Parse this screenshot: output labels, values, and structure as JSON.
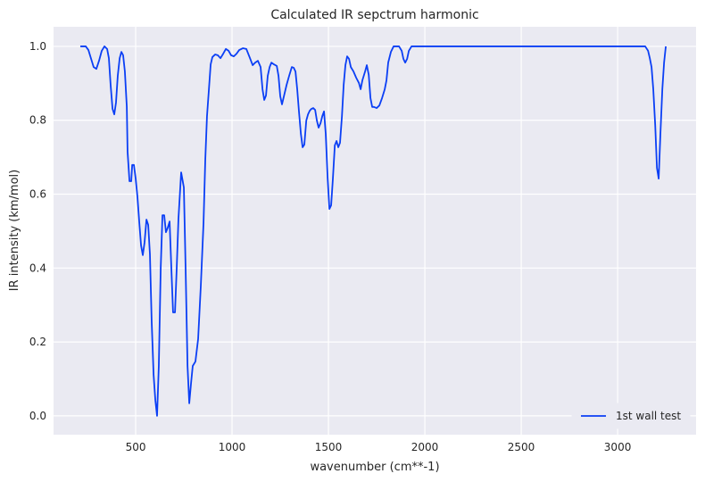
{
  "chart_data": {
    "type": "line",
    "title": "Calculated IR sepctrum harmonic",
    "x_label": "wavenumber (cm**-1)",
    "y_label": "IR intensity (km/mol)",
    "x": [
      213,
      241,
      255,
      269,
      282,
      296,
      310,
      324,
      338,
      352,
      361,
      370,
      380,
      389,
      398,
      407,
      417,
      426,
      435,
      444,
      454,
      458,
      468,
      477,
      482,
      491,
      500,
      509,
      519,
      528,
      537,
      546,
      556,
      565,
      574,
      583,
      593,
      602,
      611,
      620,
      630,
      639,
      648,
      657,
      667,
      676,
      685,
      694,
      704,
      713,
      722,
      736,
      750,
      759,
      769,
      778,
      787,
      796,
      810,
      824,
      838,
      852,
      861,
      870,
      880,
      889,
      898,
      912,
      926,
      940,
      954,
      968,
      982,
      995,
      1009,
      1023,
      1037,
      1056,
      1074,
      1093,
      1107,
      1120,
      1134,
      1148,
      1158,
      1167,
      1176,
      1185,
      1195,
      1204,
      1218,
      1232,
      1241,
      1250,
      1259,
      1269,
      1283,
      1296,
      1310,
      1320,
      1329,
      1338,
      1347,
      1357,
      1366,
      1375,
      1385,
      1394,
      1403,
      1412,
      1421,
      1431,
      1440,
      1449,
      1459,
      1468,
      1477,
      1486,
      1496,
      1505,
      1514,
      1523,
      1533,
      1542,
      1551,
      1560,
      1570,
      1579,
      1588,
      1597,
      1607,
      1616,
      1630,
      1644,
      1658,
      1667,
      1676,
      1690,
      1699,
      1709,
      1718,
      1727,
      1736,
      1750,
      1764,
      1778,
      1792,
      1801,
      1810,
      1824,
      1838,
      1852,
      1866,
      1880,
      1889,
      1898,
      1908,
      1917,
      1931,
      1949,
      3130,
      3143,
      3158,
      3167,
      3176,
      3185,
      3195,
      3204,
      3213,
      3222,
      3232,
      3241,
      3250
    ],
    "series": [
      {
        "name": "1st wall test",
        "color": "#0b3ff5",
        "values": [
          1.0,
          1.0,
          0.99,
          0.966,
          0.944,
          0.939,
          0.961,
          0.988,
          1.0,
          0.993,
          0.968,
          0.896,
          0.831,
          0.816,
          0.848,
          0.92,
          0.968,
          0.985,
          0.976,
          0.932,
          0.836,
          0.715,
          0.635,
          0.635,
          0.679,
          0.679,
          0.642,
          0.594,
          0.522,
          0.461,
          0.435,
          0.469,
          0.531,
          0.517,
          0.437,
          0.256,
          0.111,
          0.043,
          0.0,
          0.135,
          0.401,
          0.543,
          0.543,
          0.497,
          0.51,
          0.526,
          0.401,
          0.28,
          0.28,
          0.401,
          0.534,
          0.659,
          0.618,
          0.401,
          0.135,
          0.034,
          0.087,
          0.135,
          0.147,
          0.208,
          0.353,
          0.522,
          0.691,
          0.811,
          0.884,
          0.951,
          0.971,
          0.978,
          0.976,
          0.968,
          0.98,
          0.993,
          0.988,
          0.976,
          0.973,
          0.98,
          0.99,
          0.995,
          0.993,
          0.968,
          0.949,
          0.956,
          0.961,
          0.944,
          0.884,
          0.855,
          0.867,
          0.92,
          0.944,
          0.956,
          0.951,
          0.947,
          0.92,
          0.865,
          0.843,
          0.865,
          0.896,
          0.92,
          0.944,
          0.942,
          0.932,
          0.884,
          0.824,
          0.763,
          0.727,
          0.734,
          0.799,
          0.816,
          0.826,
          0.831,
          0.833,
          0.828,
          0.799,
          0.78,
          0.792,
          0.811,
          0.824,
          0.763,
          0.642,
          0.56,
          0.57,
          0.642,
          0.732,
          0.744,
          0.727,
          0.739,
          0.811,
          0.896,
          0.949,
          0.973,
          0.966,
          0.944,
          0.932,
          0.915,
          0.901,
          0.884,
          0.908,
          0.932,
          0.949,
          0.923,
          0.86,
          0.836,
          0.836,
          0.833,
          0.84,
          0.86,
          0.884,
          0.908,
          0.956,
          0.985,
          1.0,
          1.0,
          1.0,
          0.988,
          0.966,
          0.956,
          0.966,
          0.988,
          1.0,
          1.0,
          1.0,
          1.0,
          0.988,
          0.968,
          0.944,
          0.884,
          0.787,
          0.671,
          0.642,
          0.763,
          0.884,
          0.956,
          1.0
        ]
      }
    ],
    "xlim": [
      74,
      3407
    ],
    "ylim": [
      -0.051,
      1.053
    ],
    "xticks": [
      500,
      1000,
      1500,
      2000,
      2500,
      3000
    ],
    "yticks": [
      {
        "value": 0,
        "label": "0.0"
      },
      {
        "value": 0.2,
        "label": "0.2"
      },
      {
        "value": 0.4,
        "label": "0.4"
      },
      {
        "value": 0.6,
        "label": "0.6"
      },
      {
        "value": 0.8,
        "label": "0.8"
      },
      {
        "value": 1,
        "label": "1.0"
      }
    ],
    "grid": true,
    "legend": "lower right"
  }
}
